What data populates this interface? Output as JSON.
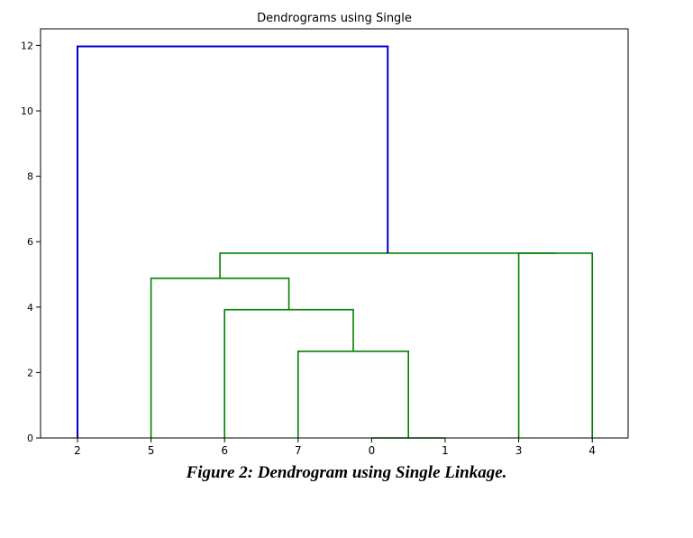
{
  "chart_data": {
    "type": "dendrogram",
    "title": "Dendrograms using Single",
    "xlabel": "",
    "ylabel": "",
    "leaf_order": [
      "2",
      "5",
      "6",
      "7",
      "0",
      "1",
      "3",
      "4"
    ],
    "ylim": [
      0,
      12.5
    ],
    "yticks": [
      0,
      2,
      4,
      6,
      8,
      10,
      12
    ],
    "grid": false,
    "colors": {
      "cluster_above_threshold": "#0000cc",
      "cluster_below_threshold": "#008000"
    },
    "merges": [
      {
        "left": "0",
        "right": "1",
        "height": 0.0,
        "color": "#008000"
      },
      {
        "left": "7",
        "right": "0+1",
        "height": 2.65,
        "color": "#008000"
      },
      {
        "left": "6",
        "right": "7+0+1",
        "height": 3.92,
        "color": "#008000"
      },
      {
        "left": "5",
        "right": "6+7+0+1",
        "height": 4.88,
        "color": "#008000"
      },
      {
        "left": "3",
        "right": "4",
        "height": 5.65,
        "color": "#008000"
      },
      {
        "left": "5+6+7+0+1",
        "right": "3+4",
        "height": 5.65,
        "color": "#008000"
      },
      {
        "left": "2",
        "right": "5+6+7+0+1+3+4",
        "height": 11.97,
        "color": "#0000cc"
      }
    ]
  },
  "caption": "Figure 2: Dendrogram using Single Linkage."
}
